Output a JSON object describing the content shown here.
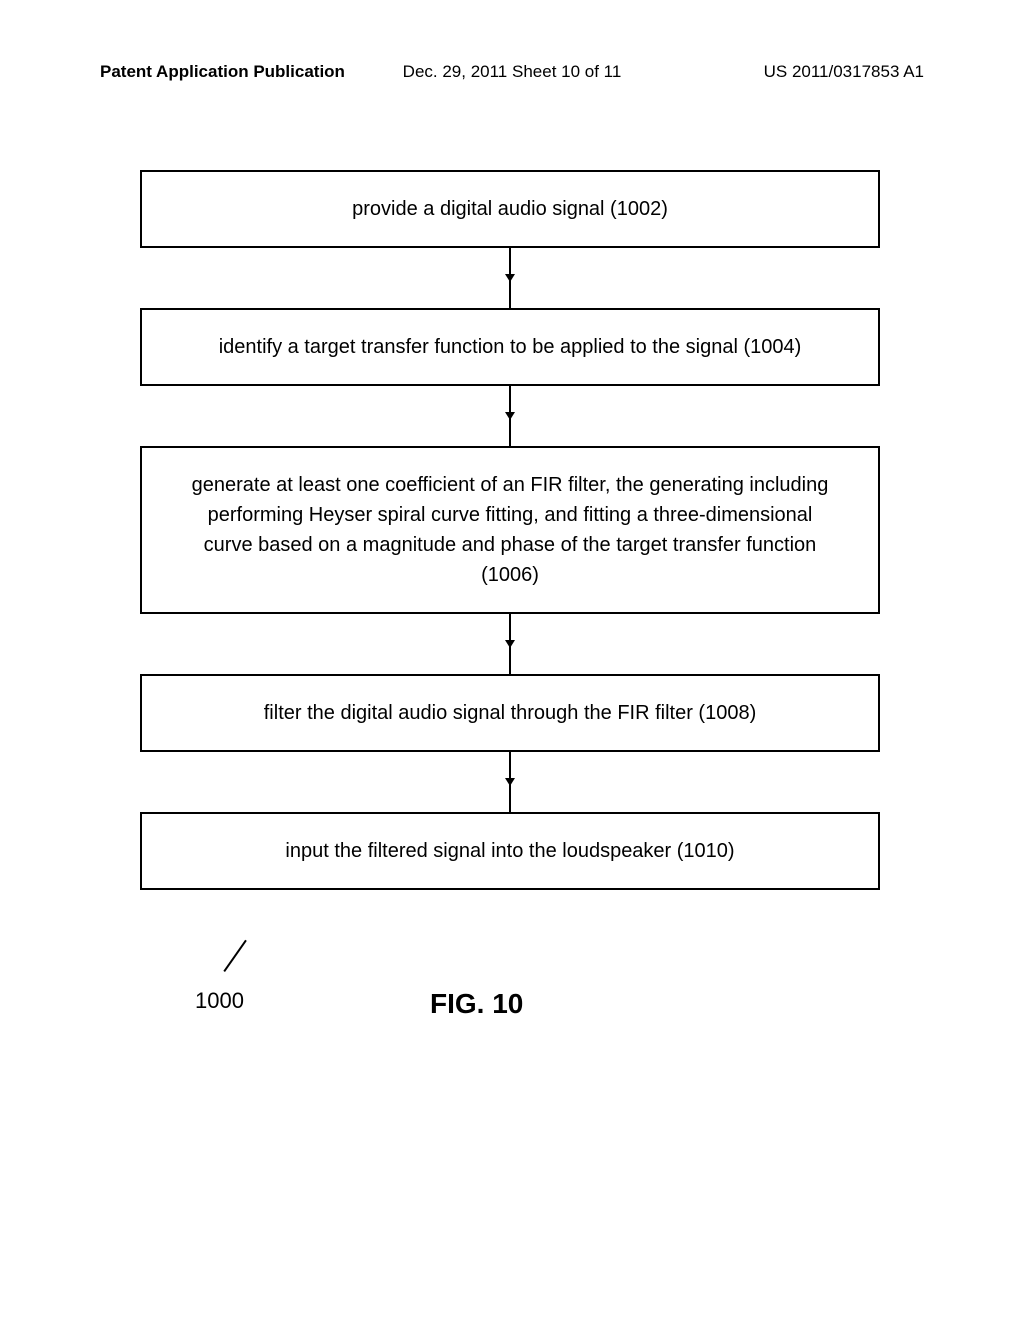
{
  "header": {
    "left": "Patent Application Publication",
    "center": "Dec. 29, 2011  Sheet 10 of 11",
    "right": "US 2011/0317853 A1"
  },
  "flowchart": {
    "type": "flowchart",
    "ref_number": "1000",
    "figure_label": "FIG. 10",
    "boxes": [
      {
        "text": "provide a digital audio signal (1002)"
      },
      {
        "text": "identify a target transfer function to be applied to the signal (1004)"
      },
      {
        "text": "generate at least one coefficient of an FIR filter, the generating including performing Heyser spiral curve fitting, and fitting a three-dimensional curve based on a magnitude and phase of the target transfer function (1006)"
      },
      {
        "text": "filter the digital audio signal through the FIR filter (1008)"
      },
      {
        "text": "input the filtered signal into the loudspeaker (1010)"
      }
    ],
    "box_border_color": "#000000",
    "box_background": "#ffffff",
    "arrow_color": "#000000",
    "font_size": 20,
    "text_color": "#000000"
  }
}
